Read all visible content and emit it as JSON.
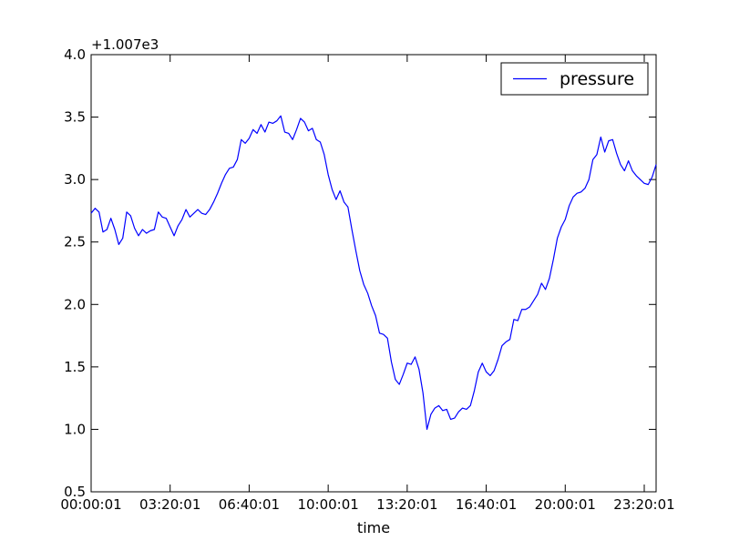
{
  "chart_data": {
    "type": "line",
    "title": "",
    "xlabel": "time",
    "ylabel": "",
    "y_offset_label": "+1.007e3",
    "ylim": [
      0.5,
      4.0
    ],
    "xlim_index": [
      0,
      143
    ],
    "grid": false,
    "legend_position": "top-right",
    "line_color": "#0000ff",
    "x_tick_labels": [
      "00:00:01",
      "03:20:01",
      "06:40:01",
      "10:00:01",
      "13:20:01",
      "16:40:01",
      "20:00:01",
      "23:20:01"
    ],
    "y_tick_labels": [
      "0.5",
      "1.0",
      "1.5",
      "2.0",
      "2.5",
      "3.0",
      "3.5",
      "4.0"
    ],
    "y_ticks": [
      0.5,
      1.0,
      1.5,
      2.0,
      2.5,
      3.0,
      3.5,
      4.0
    ],
    "series": [
      {
        "name": "pressure",
        "values": [
          2.73,
          2.77,
          2.74,
          2.58,
          2.6,
          2.69,
          2.6,
          2.48,
          2.53,
          2.74,
          2.71,
          2.61,
          2.55,
          2.6,
          2.57,
          2.59,
          2.6,
          2.74,
          2.7,
          2.69,
          2.62,
          2.55,
          2.63,
          2.68,
          2.76,
          2.7,
          2.73,
          2.76,
          2.73,
          2.72,
          2.76,
          2.82,
          2.89,
          2.97,
          3.04,
          3.09,
          3.1,
          3.16,
          3.32,
          3.29,
          3.33,
          3.4,
          3.37,
          3.44,
          3.38,
          3.46,
          3.45,
          3.47,
          3.51,
          3.38,
          3.37,
          3.32,
          3.4,
          3.49,
          3.46,
          3.39,
          3.41,
          3.32,
          3.3,
          3.2,
          3.04,
          2.92,
          2.84,
          2.91,
          2.82,
          2.78,
          2.6,
          2.43,
          2.27,
          2.16,
          2.09,
          1.99,
          1.91,
          1.77,
          1.76,
          1.73,
          1.54,
          1.4,
          1.36,
          1.44,
          1.53,
          1.52,
          1.58,
          1.48,
          1.29,
          1.0,
          1.12,
          1.17,
          1.19,
          1.15,
          1.16,
          1.08,
          1.09,
          1.14,
          1.17,
          1.16,
          1.19,
          1.31,
          1.46,
          1.53,
          1.46,
          1.43,
          1.47,
          1.56,
          1.67,
          1.7,
          1.72,
          1.88,
          1.87,
          1.96,
          1.96,
          1.98,
          2.03,
          2.08,
          2.17,
          2.12,
          2.21,
          2.36,
          2.53,
          2.62,
          2.68,
          2.79,
          2.86,
          2.89,
          2.9,
          2.93,
          3.0,
          3.16,
          3.2,
          3.34,
          3.22,
          3.31,
          3.32,
          3.21,
          3.12,
          3.07,
          3.15,
          3.07,
          3.03,
          3.0,
          2.97,
          2.96,
          3.02,
          3.12
        ]
      }
    ]
  }
}
